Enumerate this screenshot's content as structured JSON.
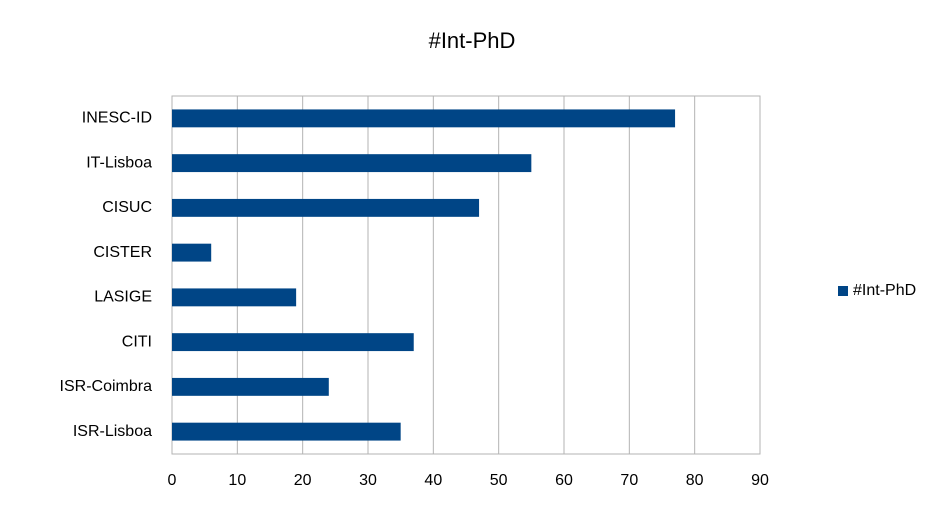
{
  "chart_data": {
    "type": "bar",
    "horizontal": true,
    "title": "#Int-PhD",
    "categories": [
      "INESC-ID",
      "IT-Lisboa",
      "CISUC",
      "CISTER",
      "LASIGE",
      "CITI",
      "ISR-Coimbra",
      "ISR-Lisboa"
    ],
    "series": [
      {
        "name": "#Int-PhD",
        "color": "#004586",
        "values": [
          77,
          55,
          47,
          6,
          19,
          37,
          24,
          35
        ]
      }
    ],
    "xlim": [
      0,
      90
    ],
    "xticks": [
      0,
      10,
      20,
      30,
      40,
      50,
      60,
      70,
      80,
      90
    ],
    "grid": true,
    "legend": "right"
  }
}
